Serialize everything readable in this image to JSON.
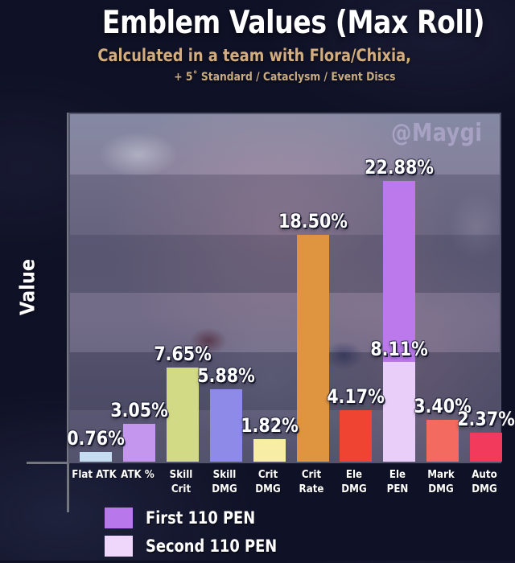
{
  "header": {
    "title": "Emblem Values (Max Roll)",
    "subtitle": "Calculated in a team with Flora/Chixia,",
    "conditions": "+ 5˚ Standard / Cataclysm / Event Discs"
  },
  "watermark": "@Maygi",
  "chart_data": {
    "type": "bar",
    "title": "Emblem Values (Max Roll)",
    "xlabel": "",
    "ylabel": "Value",
    "ylim": [
      0,
      28.6
    ],
    "grid": false,
    "y_axis_ticks_visible": false,
    "legend_position": "bottom-left",
    "categories": [
      "Flat ATK",
      "ATK %",
      "Skill Crit",
      "Skill DMG",
      "Crit DMG",
      "Crit Rate",
      "Ele DMG",
      "Ele PEN",
      "Mark DMG",
      "Auto DMG"
    ],
    "values": [
      0.76,
      3.05,
      7.65,
      5.88,
      1.82,
      18.5,
      4.17,
      22.88,
      3.4,
      2.37
    ],
    "bars": [
      {
        "category_lines": [
          "Flat ATK"
        ],
        "value": 0.76,
        "label": "0.76%",
        "color": "#c6ddf1"
      },
      {
        "category_lines": [
          "ATK %"
        ],
        "value": 3.05,
        "label": "3.05%",
        "color": "#c596ee"
      },
      {
        "category_lines": [
          "Skill",
          "Crit"
        ],
        "value": 7.65,
        "label": "7.65%",
        "color": "#d3da85"
      },
      {
        "category_lines": [
          "Skill",
          "DMG"
        ],
        "value": 5.88,
        "label": "5.88%",
        "color": "#8d8ae8"
      },
      {
        "category_lines": [
          "Crit",
          "DMG"
        ],
        "value": 1.82,
        "label": "1.82%",
        "color": "#f7eda5"
      },
      {
        "category_lines": [
          "Crit",
          "Rate"
        ],
        "value": 18.5,
        "label": "18.50%",
        "color": "#df943f"
      },
      {
        "category_lines": [
          "Ele",
          "DMG"
        ],
        "value": 4.17,
        "label": "4.17%",
        "color": "#f04432"
      },
      {
        "category_lines": [
          "Ele",
          "PEN"
        ],
        "value": 22.88,
        "label": "22.88%",
        "color": "#bb79ec",
        "overlay": {
          "value": 8.11,
          "label": "8.11%",
          "color": "#e9cef9"
        }
      },
      {
        "category_lines": [
          "Mark",
          "DMG"
        ],
        "value": 3.4,
        "label": "3.40%",
        "color": "#f26a60"
      },
      {
        "category_lines": [
          "Auto",
          "DMG"
        ],
        "value": 2.37,
        "label": "2.37%",
        "color": "#f23a5c"
      }
    ],
    "legend": [
      {
        "label": "First 110 PEN",
        "color": "#b877ea"
      },
      {
        "label": "Second 110 PEN",
        "color": "#eed7fb"
      }
    ]
  }
}
